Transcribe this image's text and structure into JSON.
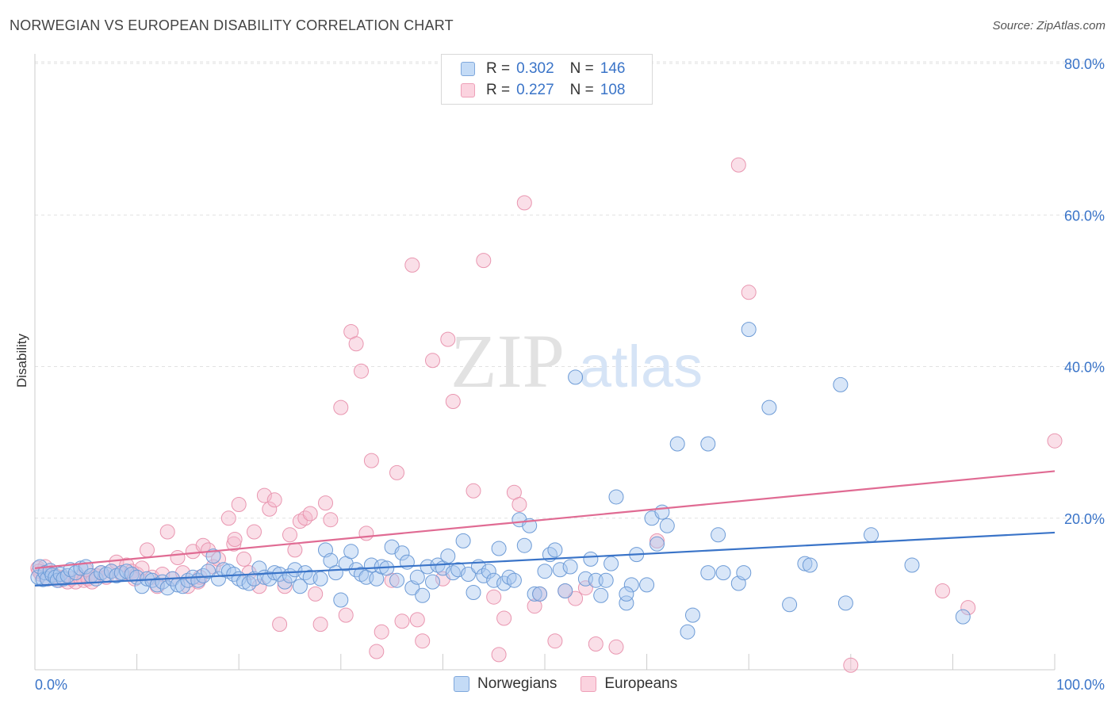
{
  "header": {
    "title": "NORWEGIAN VS EUROPEAN DISABILITY CORRELATION CHART",
    "source": "Source: ZipAtlas.com"
  },
  "watermark": {
    "zip": "ZIP",
    "atlas": "atlas"
  },
  "legend": {
    "rows": [
      {
        "r_label": "R = ",
        "r_value": "0.302",
        "n_label": "N = ",
        "n_value": "146",
        "color": "#a8c8f0"
      },
      {
        "r_label": "R = ",
        "r_value": "0.227",
        "n_label": "N = ",
        "n_value": "108",
        "color": "#f5b8cc"
      }
    ]
  },
  "bottom_legend": {
    "norwegians": "Norwegians",
    "europeans": "Europeans"
  },
  "chart_data": {
    "type": "scatter",
    "title": "NORWEGIAN VS EUROPEAN DISABILITY CORRELATION CHART",
    "xlabel": "",
    "ylabel": "Disability",
    "xlim": [
      0,
      100
    ],
    "ylim": [
      0,
      80
    ],
    "x_tick_labels": [
      "0.0%",
      "100.0%"
    ],
    "y_ticks": [
      20,
      40,
      60,
      80
    ],
    "y_tick_labels": [
      "20.0%",
      "40.0%",
      "60.0%",
      "80.0%"
    ],
    "grid": true,
    "legend_position": "top-center",
    "colors": {
      "norwegians": "#3a74c8",
      "europeans": "#e06b93",
      "norwegians_fill": "#a8c8f0",
      "europeans_fill": "#f5b8cc"
    },
    "series": [
      {
        "name": "Norwegians",
        "trend": {
          "x": [
            0,
            100
          ],
          "y": [
            11.1,
            18.1
          ]
        },
        "points": [
          [
            0.3,
            12.2
          ],
          [
            0.5,
            13.6
          ],
          [
            0.8,
            11.9
          ],
          [
            1.0,
            12.8
          ],
          [
            1.2,
            12.0
          ],
          [
            1.5,
            13.1
          ],
          [
            1.7,
            12.5
          ],
          [
            2.0,
            12.2
          ],
          [
            2.2,
            11.8
          ],
          [
            2.5,
            12.6
          ],
          [
            2.8,
            12.0
          ],
          [
            3.2,
            12.4
          ],
          [
            3.5,
            13.2
          ],
          [
            4.0,
            12.8
          ],
          [
            4.5,
            13.4
          ],
          [
            5.0,
            13.6
          ],
          [
            5.5,
            12.4
          ],
          [
            6.0,
            12.0
          ],
          [
            6.5,
            12.8
          ],
          [
            7.0,
            12.6
          ],
          [
            7.5,
            13.0
          ],
          [
            8.0,
            12.4
          ],
          [
            8.5,
            12.8
          ],
          [
            9.0,
            13.0
          ],
          [
            9.5,
            12.6
          ],
          [
            10.0,
            12.2
          ],
          [
            10.5,
            11.0
          ],
          [
            11.0,
            12.0
          ],
          [
            11.5,
            11.8
          ],
          [
            12.0,
            11.2
          ],
          [
            12.5,
            11.6
          ],
          [
            13.0,
            10.8
          ],
          [
            13.5,
            12.0
          ],
          [
            14.0,
            11.2
          ],
          [
            14.5,
            11.0
          ],
          [
            15.0,
            11.8
          ],
          [
            15.5,
            12.2
          ],
          [
            16.0,
            11.8
          ],
          [
            16.5,
            12.4
          ],
          [
            17.0,
            13.0
          ],
          [
            17.5,
            15.0
          ],
          [
            18.0,
            12.0
          ],
          [
            18.5,
            13.2
          ],
          [
            19.0,
            13.0
          ],
          [
            19.5,
            12.6
          ],
          [
            20.0,
            12.0
          ],
          [
            20.5,
            11.6
          ],
          [
            21.0,
            11.4
          ],
          [
            21.5,
            12.0
          ],
          [
            22.0,
            13.4
          ],
          [
            22.5,
            12.2
          ],
          [
            23.0,
            12.0
          ],
          [
            23.5,
            12.8
          ],
          [
            24.0,
            12.6
          ],
          [
            24.5,
            11.6
          ],
          [
            25.0,
            12.4
          ],
          [
            25.5,
            13.2
          ],
          [
            26.0,
            11.0
          ],
          [
            26.5,
            12.8
          ],
          [
            27.0,
            12.2
          ],
          [
            28.0,
            12.0
          ],
          [
            28.5,
            15.8
          ],
          [
            29.0,
            14.4
          ],
          [
            29.5,
            12.8
          ],
          [
            30.0,
            9.2
          ],
          [
            30.5,
            14.0
          ],
          [
            31.0,
            15.6
          ],
          [
            31.5,
            13.2
          ],
          [
            32.0,
            12.6
          ],
          [
            32.5,
            12.2
          ],
          [
            33.0,
            13.8
          ],
          [
            33.5,
            12.0
          ],
          [
            34.0,
            13.6
          ],
          [
            34.5,
            13.4
          ],
          [
            35.0,
            16.2
          ],
          [
            35.5,
            11.8
          ],
          [
            36.0,
            15.4
          ],
          [
            36.5,
            14.2
          ],
          [
            37.0,
            10.8
          ],
          [
            37.5,
            12.2
          ],
          [
            38.0,
            9.8
          ],
          [
            38.5,
            13.6
          ],
          [
            39.0,
            11.6
          ],
          [
            39.5,
            13.8
          ],
          [
            40.0,
            13.4
          ],
          [
            40.5,
            15.0
          ],
          [
            41.0,
            12.8
          ],
          [
            41.5,
            13.2
          ],
          [
            42.0,
            17.0
          ],
          [
            42.5,
            12.6
          ],
          [
            43.0,
            10.2
          ],
          [
            43.5,
            13.6
          ],
          [
            44.0,
            12.4
          ],
          [
            44.5,
            13.0
          ],
          [
            45.0,
            11.8
          ],
          [
            45.5,
            16.0
          ],
          [
            46.0,
            11.4
          ],
          [
            46.5,
            12.2
          ],
          [
            47.0,
            11.8
          ],
          [
            47.5,
            19.8
          ],
          [
            48.0,
            16.4
          ],
          [
            48.5,
            19.0
          ],
          [
            49.0,
            10.0
          ],
          [
            49.5,
            10.0
          ],
          [
            50.0,
            13.0
          ],
          [
            50.5,
            15.2
          ],
          [
            51.0,
            15.8
          ],
          [
            51.5,
            13.2
          ],
          [
            52.0,
            10.4
          ],
          [
            52.5,
            13.6
          ],
          [
            53.0,
            38.6
          ],
          [
            54.0,
            12.0
          ],
          [
            54.5,
            14.6
          ],
          [
            55.0,
            11.8
          ],
          [
            55.5,
            9.8
          ],
          [
            56.0,
            11.8
          ],
          [
            56.5,
            14.0
          ],
          [
            57.0,
            22.8
          ],
          [
            58.0,
            8.8
          ],
          [
            58.5,
            11.2
          ],
          [
            59.0,
            15.2
          ],
          [
            60.0,
            11.2
          ],
          [
            60.5,
            20.0
          ],
          [
            61.0,
            16.6
          ],
          [
            61.5,
            20.8
          ],
          [
            62.0,
            19.0
          ],
          [
            63.0,
            29.8
          ],
          [
            64.0,
            5.0
          ],
          [
            64.5,
            7.2
          ],
          [
            66.0,
            29.8
          ],
          [
            67.0,
            17.8
          ],
          [
            67.5,
            12.8
          ],
          [
            69.0,
            11.4
          ],
          [
            70.0,
            44.9
          ],
          [
            72.0,
            34.6
          ],
          [
            74.0,
            8.6
          ],
          [
            75.5,
            14.0
          ],
          [
            76.0,
            13.8
          ],
          [
            79.0,
            37.6
          ],
          [
            79.5,
            8.8
          ],
          [
            82.0,
            17.8
          ],
          [
            86.0,
            13.8
          ],
          [
            91.0,
            7.0
          ],
          [
            66.0,
            12.8
          ],
          [
            69.5,
            12.8
          ],
          [
            58.0,
            10.0
          ]
        ]
      },
      {
        "name": "Europeans",
        "trend": {
          "x": [
            0,
            100
          ],
          "y": [
            13.4,
            26.2
          ]
        },
        "points": [
          [
            0.3,
            13.4
          ],
          [
            0.6,
            12.6
          ],
          [
            1.0,
            13.6
          ],
          [
            1.3,
            12.0
          ],
          [
            1.6,
            12.8
          ],
          [
            2.0,
            12.4
          ],
          [
            2.4,
            11.8
          ],
          [
            2.8,
            12.2
          ],
          [
            3.2,
            11.6
          ],
          [
            3.6,
            12.0
          ],
          [
            4.0,
            11.6
          ],
          [
            4.4,
            12.2
          ],
          [
            4.8,
            11.8
          ],
          [
            5.2,
            12.0
          ],
          [
            5.6,
            11.6
          ],
          [
            6.0,
            12.4
          ],
          [
            6.5,
            12.8
          ],
          [
            7.0,
            12.2
          ],
          [
            7.5,
            13.0
          ],
          [
            8.0,
            14.2
          ],
          [
            8.5,
            12.6
          ],
          [
            9.0,
            13.8
          ],
          [
            9.5,
            13.0
          ],
          [
            10.0,
            12.6
          ],
          [
            10.5,
            13.4
          ],
          [
            11.0,
            15.8
          ],
          [
            11.5,
            12.2
          ],
          [
            12.0,
            11.0
          ],
          [
            12.5,
            12.6
          ],
          [
            13.0,
            18.2
          ],
          [
            13.5,
            12.0
          ],
          [
            14.0,
            14.8
          ],
          [
            14.5,
            12.8
          ],
          [
            15.0,
            11.0
          ],
          [
            15.5,
            15.6
          ],
          [
            16.0,
            11.6
          ],
          [
            16.5,
            16.4
          ],
          [
            17.0,
            15.8
          ],
          [
            17.5,
            13.6
          ],
          [
            18.0,
            14.6
          ],
          [
            19.0,
            20.0
          ],
          [
            19.5,
            16.6
          ],
          [
            20.0,
            21.8
          ],
          [
            20.5,
            14.6
          ],
          [
            21.0,
            12.8
          ],
          [
            21.5,
            18.2
          ],
          [
            22.0,
            11.0
          ],
          [
            22.5,
            23.0
          ],
          [
            23.0,
            21.2
          ],
          [
            23.5,
            22.4
          ],
          [
            24.0,
            6.0
          ],
          [
            24.5,
            11.0
          ],
          [
            25.0,
            17.8
          ],
          [
            25.5,
            15.8
          ],
          [
            26.0,
            19.6
          ],
          [
            26.5,
            20.0
          ],
          [
            27.0,
            20.6
          ],
          [
            27.5,
            10.0
          ],
          [
            28.0,
            6.0
          ],
          [
            28.5,
            22.0
          ],
          [
            29.0,
            19.8
          ],
          [
            30.0,
            34.6
          ],
          [
            30.5,
            7.2
          ],
          [
            31.0,
            44.6
          ],
          [
            31.5,
            43.0
          ],
          [
            32.0,
            39.4
          ],
          [
            32.5,
            18.0
          ],
          [
            33.0,
            27.6
          ],
          [
            33.5,
            2.4
          ],
          [
            34.0,
            5.0
          ],
          [
            35.0,
            11.8
          ],
          [
            35.5,
            26.0
          ],
          [
            36.0,
            6.4
          ],
          [
            37.0,
            53.4
          ],
          [
            37.5,
            6.6
          ],
          [
            38.0,
            3.8
          ],
          [
            39.0,
            40.8
          ],
          [
            40.0,
            12.0
          ],
          [
            40.5,
            43.6
          ],
          [
            41.0,
            35.4
          ],
          [
            43.0,
            23.6
          ],
          [
            44.0,
            54.0
          ],
          [
            45.0,
            9.6
          ],
          [
            45.5,
            2.0
          ],
          [
            46.0,
            6.8
          ],
          [
            47.0,
            23.4
          ],
          [
            47.5,
            21.8
          ],
          [
            48.0,
            61.6
          ],
          [
            49.0,
            8.4
          ],
          [
            49.5,
            10.0
          ],
          [
            51.0,
            3.8
          ],
          [
            52.0,
            10.4
          ],
          [
            53.0,
            9.4
          ],
          [
            54.0,
            10.8
          ],
          [
            55.0,
            3.4
          ],
          [
            57.0,
            3.0
          ],
          [
            61.0,
            17.0
          ],
          [
            69.0,
            66.6
          ],
          [
            70.0,
            49.8
          ],
          [
            80.0,
            0.6
          ],
          [
            89.0,
            10.4
          ],
          [
            91.5,
            8.2
          ],
          [
            100.0,
            30.2
          ],
          [
            0.4,
            13.0
          ],
          [
            5.0,
            13.2
          ],
          [
            9.8,
            12.0
          ],
          [
            16.2,
            12.2
          ],
          [
            19.6,
            17.2
          ]
        ]
      }
    ]
  }
}
